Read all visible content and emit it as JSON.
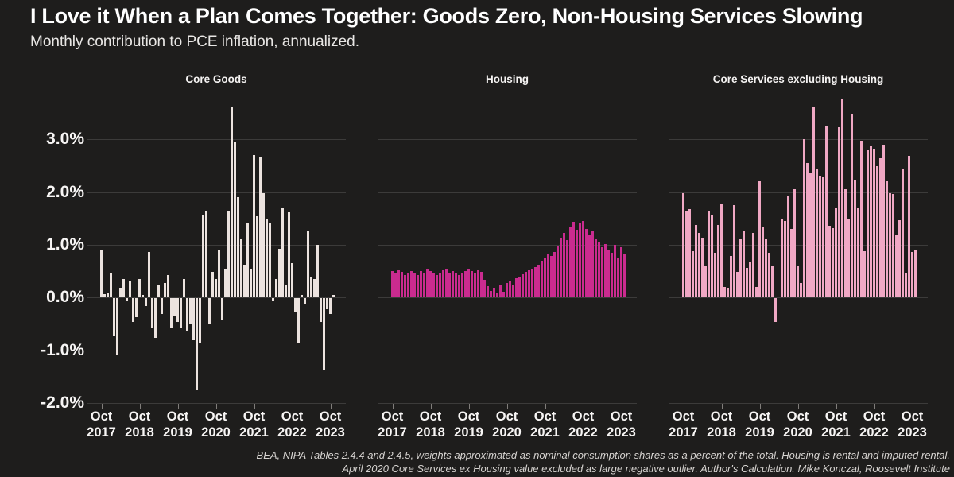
{
  "header": {
    "title": "I Love it When a Plan Comes Together: Goods Zero, Non-Housing Services Slowing",
    "subtitle": "Monthly contribution to PCE inflation, annualized."
  },
  "footer": {
    "line1": "BEA, NIPA Tables 2.4.4 and 2.4.5, weights approximated as nominal consumption shares as a percent of the total. Housing is rental and imputed rental.",
    "line2": "April 2020 Core Services ex Housing value excluded as large negative outlier. Author's Calculation. Mike Konczal, Roosevelt Institute"
  },
  "colors": {
    "background": "#1e1d1c",
    "grid": "#3c3b3a",
    "text": "#ffffff",
    "tick_mark": "#807d7a",
    "core_goods_bar": "#ece3df",
    "housing_bar": "#ca2b8f",
    "core_services_bar": "#f0a8c4"
  },
  "chart_data": {
    "type": "bar",
    "title": "I Love it When a Plan Comes Together: Goods Zero, Non-Housing Services Slowing",
    "subtitle": "Monthly contribution to PCE inflation, annualized.",
    "ylabel": "Monthly contribution to PCE inflation, annualized (%)",
    "frequency": "monthly",
    "x_start": "Oct 2017",
    "x_end": "Nov 2023",
    "ylim": [
      -2.3,
      3.95
    ],
    "grid": true,
    "legend": "none",
    "y_ticks": [
      {
        "value": 3,
        "label": "3.0%"
      },
      {
        "value": 2,
        "label": "2.0%"
      },
      {
        "value": 1,
        "label": "1.0%"
      },
      {
        "value": 0,
        "label": "0.0%"
      },
      {
        "value": -1,
        "label": "-1.0%"
      },
      {
        "value": -2,
        "label": "-2.0%"
      }
    ],
    "x_ticks": [
      {
        "month_index": 0,
        "line1": "Oct",
        "line2": "2017"
      },
      {
        "month_index": 12,
        "line1": "Oct",
        "line2": "2018"
      },
      {
        "month_index": 24,
        "line1": "Oct",
        "line2": "2019"
      },
      {
        "month_index": 36,
        "line1": "Oct",
        "line2": "2020"
      },
      {
        "month_index": 48,
        "line1": "Oct",
        "line2": "2021"
      },
      {
        "month_index": 60,
        "line1": "Oct",
        "line2": "2022"
      },
      {
        "month_index": 72,
        "line1": "Oct",
        "line2": "2023"
      }
    ],
    "panels": [
      {
        "title": "Core Goods",
        "color": "#ece3df",
        "values": [
          0.9,
          0.07,
          0.1,
          0.45,
          -0.72,
          -1.08,
          0.18,
          0.35,
          -0.05,
          0.3,
          -0.45,
          -0.35,
          0.35,
          0.05,
          -0.15,
          0.87,
          -0.55,
          -0.75,
          0.25,
          -0.3,
          0.28,
          0.42,
          -0.55,
          -0.32,
          -0.45,
          -0.55,
          0.35,
          -0.62,
          -0.48,
          -0.8,
          -1.75,
          -0.85,
          1.58,
          1.65,
          -0.5,
          0.48,
          0.35,
          0.9,
          -0.42,
          0.55,
          1.65,
          3.62,
          2.95,
          1.9,
          1.1,
          0.62,
          1.42,
          0.55,
          2.7,
          1.55,
          2.68,
          1.98,
          1.48,
          1.42,
          -0.05,
          0.35,
          0.92,
          1.7,
          0.25,
          1.62,
          0.65,
          -0.25,
          -0.85,
          0.05,
          -0.12,
          1.25,
          0.4,
          0.35,
          1.0,
          -0.45,
          -1.35,
          -0.2,
          -0.3,
          0.05
        ]
      },
      {
        "title": "Housing",
        "color": "#ca2b8f",
        "values": [
          0.5,
          0.45,
          0.52,
          0.48,
          0.42,
          0.45,
          0.5,
          0.47,
          0.42,
          0.5,
          0.45,
          0.55,
          0.5,
          0.45,
          0.42,
          0.47,
          0.52,
          0.55,
          0.45,
          0.5,
          0.47,
          0.42,
          0.45,
          0.5,
          0.55,
          0.5,
          0.45,
          0.52,
          0.48,
          0.34,
          0.22,
          0.13,
          0.18,
          0.1,
          0.24,
          0.11,
          0.28,
          0.32,
          0.24,
          0.36,
          0.4,
          0.44,
          0.48,
          0.52,
          0.54,
          0.58,
          0.62,
          0.7,
          0.76,
          0.83,
          0.79,
          0.87,
          0.98,
          1.12,
          1.22,
          1.09,
          1.34,
          1.44,
          1.28,
          1.41,
          1.45,
          1.3,
          1.2,
          1.25,
          1.1,
          1.05,
          0.95,
          1.02,
          0.9,
          0.85,
          1.0,
          0.75,
          0.95,
          0.82
        ]
      },
      {
        "title": "Core Services excluding Housing",
        "color": "#f0a8c4",
        "note": "April 2020 value excluded as large negative outlier",
        "values": [
          1.98,
          1.64,
          1.68,
          0.88,
          1.37,
          1.23,
          1.12,
          0.59,
          1.64,
          1.57,
          0.85,
          1.37,
          1.79,
          0.2,
          0.18,
          0.79,
          1.76,
          0.49,
          1.1,
          1.27,
          0.56,
          0.67,
          1.23,
          0.2,
          2.2,
          1.33,
          1.1,
          0.85,
          0.6,
          -0.45,
          null,
          1.49,
          1.45,
          1.93,
          1.3,
          2.06,
          0.6,
          0.28,
          3.0,
          2.55,
          2.35,
          3.63,
          2.45,
          2.3,
          2.28,
          3.25,
          1.36,
          1.32,
          1.69,
          3.23,
          3.76,
          2.06,
          1.5,
          3.48,
          2.23,
          1.69,
          2.97,
          0.88,
          2.79,
          2.87,
          2.82,
          2.49,
          2.65,
          2.9,
          2.21,
          1.98,
          1.96,
          1.2,
          1.47,
          2.44,
          0.47,
          2.69,
          0.86,
          0.9
        ]
      }
    ]
  }
}
